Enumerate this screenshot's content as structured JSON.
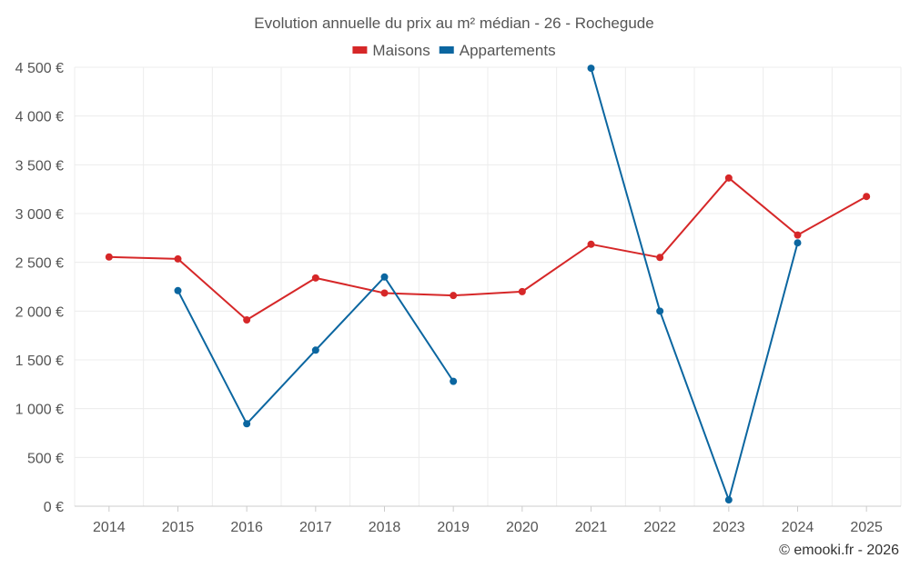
{
  "chart_data": {
    "type": "line",
    "title": "Evolution annuelle du prix au m² médian - 26 - Rochegude",
    "categories": [
      "2014",
      "2015",
      "2016",
      "2017",
      "2018",
      "2019",
      "2020",
      "2021",
      "2022",
      "2023",
      "2024",
      "2025"
    ],
    "series": [
      {
        "name": "Maisons",
        "color": "#d62728",
        "values": [
          2555,
          2535,
          1910,
          2340,
          2185,
          2160,
          2200,
          2685,
          2550,
          3365,
          2780,
          3175
        ]
      },
      {
        "name": "Appartements",
        "color": "#0b66a0",
        "values": [
          null,
          2210,
          845,
          1600,
          2350,
          1280,
          null,
          4490,
          2000,
          65,
          2700,
          null
        ]
      }
    ],
    "ylim": [
      0,
      4500
    ],
    "yticks": [
      0,
      500,
      1000,
      1500,
      2000,
      2500,
      3000,
      3500,
      4000,
      4500
    ],
    "ytick_labels": [
      "0 €",
      "500 €",
      "1 000 €",
      "1 500 €",
      "2 000 €",
      "2 500 €",
      "3 000 €",
      "3 500 €",
      "4 000 €",
      "4 500 €"
    ],
    "xlabel": "",
    "ylabel": "",
    "grid": true,
    "legend_position": "top-center"
  },
  "credit": "© emooki.fr - 2026"
}
